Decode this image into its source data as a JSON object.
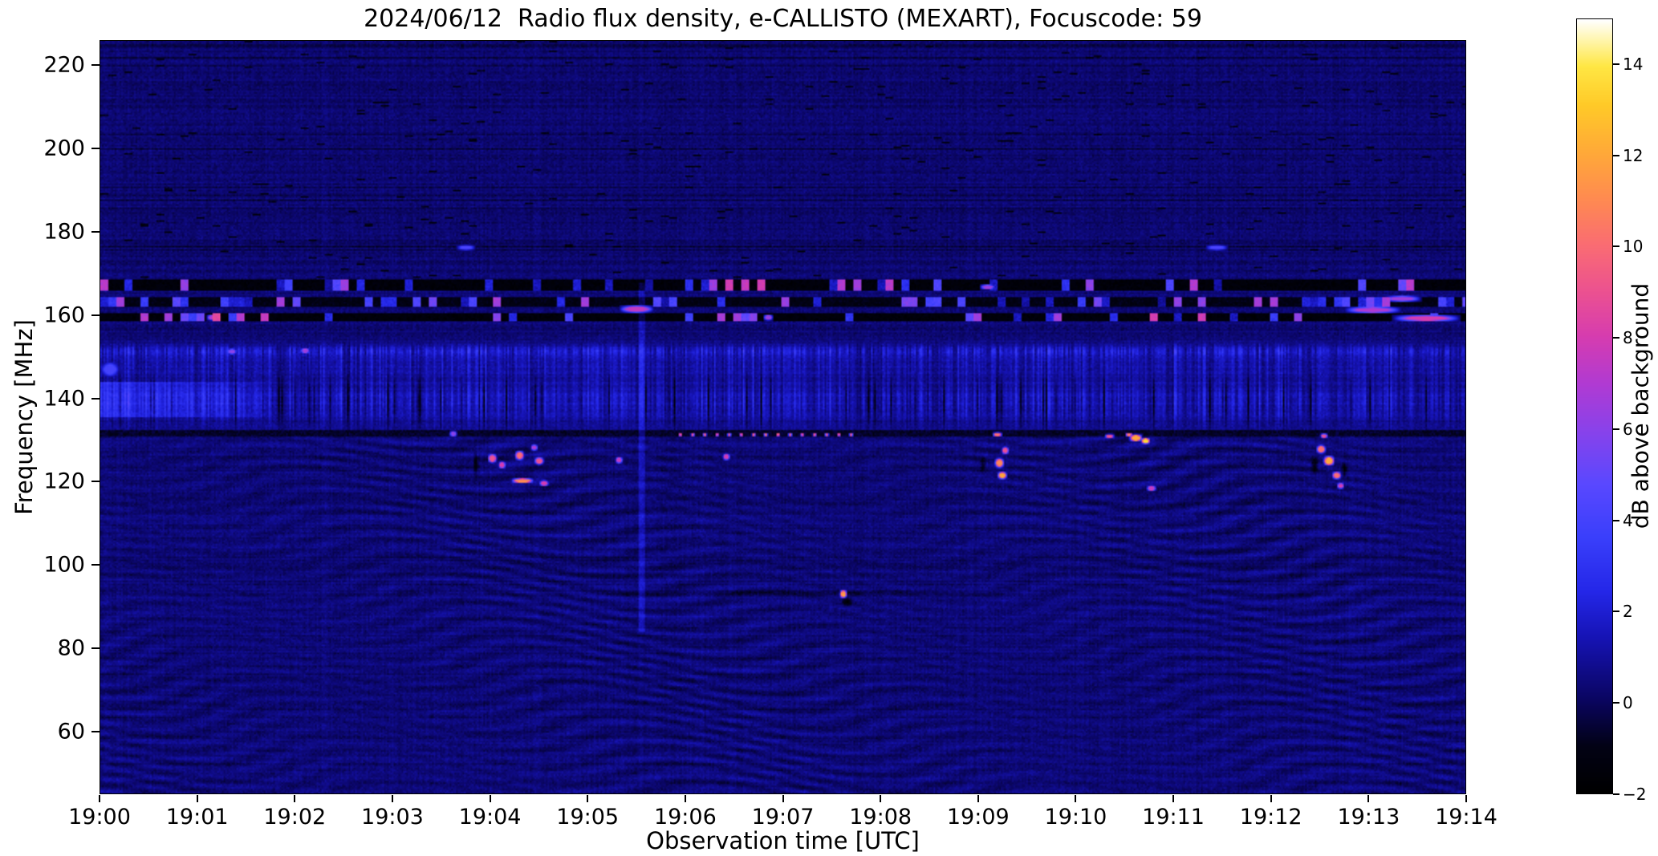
{
  "chart_data": {
    "type": "heatmap",
    "title": "2024/06/12  Radio flux density, e-CALLISTO (MEXART), Focuscode: 59",
    "xlabel": "Observation time [UTC]",
    "ylabel": "Frequency [MHz]",
    "colorbar_label": "dB above background",
    "x_ticks": [
      "19:00",
      "19:01",
      "19:02",
      "19:03",
      "19:04",
      "19:05",
      "19:06",
      "19:07",
      "19:08",
      "19:09",
      "19:10",
      "19:11",
      "19:12",
      "19:13",
      "19:14"
    ],
    "x_range_minutes": [
      0,
      14
    ],
    "x_start_time": "19:00",
    "x_end_time": "19:14",
    "y_ticks": [
      60,
      80,
      100,
      120,
      140,
      160,
      180,
      200,
      220
    ],
    "ylim": [
      45,
      226
    ],
    "vlim": [
      -2,
      15
    ],
    "colorbar_ticks": [
      -2,
      0,
      2,
      4,
      6,
      8,
      10,
      12,
      14
    ],
    "grid": false,
    "legend": "colorbar-right",
    "colormap_stops": [
      [
        0.0,
        "#000000"
      ],
      [
        0.06,
        "#020215"
      ],
      [
        0.12,
        "#0a0560"
      ],
      [
        0.2,
        "#1613b4"
      ],
      [
        0.26,
        "#2427e8"
      ],
      [
        0.33,
        "#3a3ffb"
      ],
      [
        0.4,
        "#5a48ff"
      ],
      [
        0.47,
        "#8a42ea"
      ],
      [
        0.53,
        "#b13ad2"
      ],
      [
        0.59,
        "#d63cb0"
      ],
      [
        0.65,
        "#ec5290"
      ],
      [
        0.71,
        "#fa6d72"
      ],
      [
        0.77,
        "#ff8b50"
      ],
      [
        0.83,
        "#ffaa38"
      ],
      [
        0.89,
        "#ffca28"
      ],
      [
        0.94,
        "#ffe744"
      ],
      [
        0.975,
        "#fff6b0"
      ],
      [
        1.0,
        "#ffffff"
      ]
    ],
    "features": {
      "background": 0.35,
      "noise_amp": 0.5,
      "row_offset_amp": 0.45,
      "col_offset_amp": 0.3,
      "ripple": {
        "max_freq": 133,
        "amp": 0.38
      },
      "high_band": {
        "min_freq": 169,
        "dark_row_prob": 0.05,
        "dash_prob": 0.015
      },
      "blue_band": {
        "center1": 139.5,
        "sigma1": 5.5,
        "amp1": 1.15,
        "center2": 148.5,
        "sigma2": 3.5,
        "amp2": 0.75,
        "center3": 151.5,
        "sigma3": 1.2,
        "amp3": 1.1,
        "dark_col_prob": 0.07,
        "early_patch": {
          "t_end": 1.7,
          "f0": 135.5,
          "f1": 144,
          "amp": 1.5
        }
      },
      "black_bands": [
        {
          "f0": 165.8,
          "f1": 168.6,
          "level": -1.5,
          "dash_prob": 0.22,
          "dash_max": 7
        },
        {
          "f0": 162.2,
          "f1": 164.2,
          "level": -1.1,
          "dash_prob": 0.3,
          "dash_max": 6
        },
        {
          "f0": 158.6,
          "f1": 160.6,
          "level": -1.5,
          "dash_prob": 0.18,
          "dash_max": 8
        }
      ],
      "dark_row": {
        "f0": 130.8,
        "f1": 132.6,
        "level": -0.7
      },
      "dot_row": {
        "f": 131.3,
        "t0": 5.95,
        "t1": 7.75,
        "step": 0.125,
        "v": 9,
        "dt": 0.022,
        "df": 0.45
      },
      "vertical_line": {
        "t": 5.55,
        "f_center": 126,
        "dt": 0.03,
        "df": 42,
        "amp": 1.1
      },
      "blobs": [
        {
          "t": 3.62,
          "f": 131.5,
          "dt": 0.04,
          "df": 0.8,
          "v": 6
        },
        {
          "t": 4.02,
          "f": 125.6,
          "dt": 0.05,
          "df": 1.2,
          "v": 9
        },
        {
          "t": 4.12,
          "f": 124.0,
          "dt": 0.04,
          "df": 1.0,
          "v": 8
        },
        {
          "t": 4.3,
          "f": 126.3,
          "dt": 0.05,
          "df": 1.2,
          "v": 10
        },
        {
          "t": 4.33,
          "f": 120.2,
          "dt": 0.12,
          "df": 0.7,
          "v": 11
        },
        {
          "t": 4.5,
          "f": 125.0,
          "dt": 0.05,
          "df": 1.0,
          "v": 9
        },
        {
          "t": 4.55,
          "f": 119.6,
          "dt": 0.05,
          "df": 0.8,
          "v": 8
        },
        {
          "t": 4.45,
          "f": 128.2,
          "dt": 0.04,
          "df": 0.8,
          "v": 7
        },
        {
          "t": 5.32,
          "f": 125.2,
          "dt": 0.04,
          "df": 0.9,
          "v": 7.5
        },
        {
          "t": 6.42,
          "f": 126.0,
          "dt": 0.04,
          "df": 0.9,
          "v": 8
        },
        {
          "t": 7.62,
          "f": 93.0,
          "dt": 0.04,
          "df": 1.1,
          "v": 12
        },
        {
          "t": 9.22,
          "f": 124.5,
          "dt": 0.05,
          "df": 1.3,
          "v": 11
        },
        {
          "t": 9.25,
          "f": 121.5,
          "dt": 0.05,
          "df": 1.0,
          "v": 12
        },
        {
          "t": 9.28,
          "f": 127.5,
          "dt": 0.04,
          "df": 1.0,
          "v": 9
        },
        {
          "t": 9.2,
          "f": 131.3,
          "dt": 0.05,
          "df": 0.6,
          "v": 10
        },
        {
          "t": 10.35,
          "f": 130.9,
          "dt": 0.05,
          "df": 0.6,
          "v": 9
        },
        {
          "t": 10.62,
          "f": 130.5,
          "dt": 0.07,
          "df": 1.0,
          "v": 12
        },
        {
          "t": 10.72,
          "f": 129.8,
          "dt": 0.05,
          "df": 0.8,
          "v": 13.5
        },
        {
          "t": 10.55,
          "f": 131.3,
          "dt": 0.04,
          "df": 0.5,
          "v": 10
        },
        {
          "t": 10.78,
          "f": 118.4,
          "dt": 0.05,
          "df": 0.8,
          "v": 7.5
        },
        {
          "t": 12.52,
          "f": 127.8,
          "dt": 0.05,
          "df": 1.1,
          "v": 10
        },
        {
          "t": 12.6,
          "f": 125.0,
          "dt": 0.06,
          "df": 1.3,
          "v": 12
        },
        {
          "t": 12.68,
          "f": 121.5,
          "dt": 0.05,
          "df": 1.0,
          "v": 10
        },
        {
          "t": 12.55,
          "f": 131.0,
          "dt": 0.04,
          "df": 0.6,
          "v": 9
        },
        {
          "t": 12.72,
          "f": 119.0,
          "dt": 0.04,
          "df": 0.8,
          "v": 8
        },
        {
          "t": 3.75,
          "f": 176.3,
          "dt": 0.1,
          "df": 0.7,
          "v": 4.2
        },
        {
          "t": 11.45,
          "f": 176.3,
          "dt": 0.12,
          "df": 0.7,
          "v": 4.2
        },
        {
          "t": 5.5,
          "f": 161.5,
          "dt": 0.18,
          "df": 1.0,
          "v": 7.5
        },
        {
          "t": 13.05,
          "f": 161.3,
          "dt": 0.3,
          "df": 0.9,
          "v": 7
        },
        {
          "t": 13.35,
          "f": 164.0,
          "dt": 0.2,
          "df": 0.8,
          "v": 6.5
        },
        {
          "t": 13.6,
          "f": 159.3,
          "dt": 0.35,
          "df": 0.9,
          "v": 8
        },
        {
          "t": 1.35,
          "f": 151.3,
          "dt": 0.05,
          "df": 0.8,
          "v": 6
        },
        {
          "t": 2.1,
          "f": 151.5,
          "dt": 0.05,
          "df": 0.8,
          "v": 6.5
        },
        {
          "t": 1.15,
          "f": 159.5,
          "dt": 0.06,
          "df": 0.8,
          "v": 7
        },
        {
          "t": 6.85,
          "f": 159.5,
          "dt": 0.05,
          "df": 0.8,
          "v": 6.5
        },
        {
          "t": 9.1,
          "f": 166.8,
          "dt": 0.08,
          "df": 0.7,
          "v": 6.5
        },
        {
          "t": 0.1,
          "f": 147.0,
          "dt": 0.1,
          "df": 2.0,
          "v": 4
        },
        {
          "t": 7.3,
          "f": 93.3,
          "dt": 2.2,
          "df": 0.8,
          "v": -1.0,
          "mode": "add"
        },
        {
          "t": 7.66,
          "f": 91.3,
          "dt": 0.07,
          "df": 1.3,
          "v": -2.5,
          "mode": "add"
        },
        {
          "t": 12.45,
          "f": 124.0,
          "dt": 0.05,
          "df": 3.0,
          "v": -2.2,
          "mode": "add"
        },
        {
          "t": 12.76,
          "f": 123.0,
          "dt": 0.04,
          "df": 2.0,
          "v": -2.2,
          "mode": "add"
        },
        {
          "t": 3.85,
          "f": 124.0,
          "dt": 0.03,
          "df": 4.0,
          "v": -1.8,
          "mode": "add"
        },
        {
          "t": 9.05,
          "f": 124.0,
          "dt": 0.04,
          "df": 2.5,
          "v": -1.8,
          "mode": "add"
        }
      ]
    }
  }
}
